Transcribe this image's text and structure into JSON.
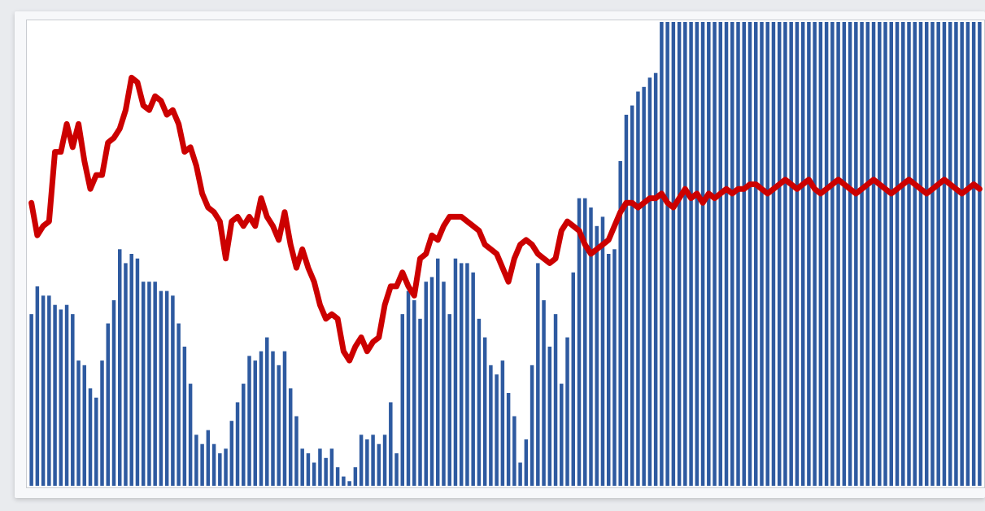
{
  "chart_data": {
    "type": "bar",
    "title": "",
    "xlabel": "",
    "ylabel": "",
    "grid": false,
    "legend": "none",
    "ylim": [
      0,
      100
    ],
    "bar_color": "#2e5aa0",
    "line_color": "#cc0000",
    "x": [
      1,
      2,
      3,
      4,
      5,
      6,
      7,
      8,
      9,
      10,
      11,
      12,
      13,
      14,
      15,
      16,
      17,
      18,
      19,
      20,
      21,
      22,
      23,
      24,
      25,
      26,
      27,
      28,
      29,
      30,
      31,
      32,
      33,
      34,
      35,
      36,
      37,
      38,
      39,
      40,
      41,
      42,
      43,
      44,
      45,
      46,
      47,
      48,
      49,
      50,
      51,
      52,
      53,
      54,
      55,
      56,
      57,
      58,
      59,
      60,
      61,
      62,
      63,
      64,
      65,
      66,
      67,
      68,
      69,
      70,
      71,
      72,
      73,
      74,
      75,
      76,
      77,
      78,
      79,
      80,
      81,
      82,
      83,
      84,
      85,
      86,
      87,
      88,
      89,
      90,
      91,
      92,
      93,
      94,
      95,
      96,
      97,
      98,
      99,
      100,
      101,
      102,
      103,
      104,
      105,
      106,
      107,
      108,
      109,
      110,
      111,
      112,
      113,
      114,
      115,
      116,
      117,
      118,
      119,
      120,
      121,
      122,
      123,
      124,
      125,
      126,
      127,
      128,
      129,
      130,
      131,
      132,
      133,
      134,
      135,
      136,
      137,
      138,
      139,
      140,
      141,
      142,
      143,
      144,
      145,
      146,
      147,
      148,
      149,
      150,
      151,
      152,
      153,
      154,
      155,
      156,
      157,
      158,
      159,
      160,
      161,
      162
    ],
    "series": [
      {
        "kind": "bar",
        "values": [
          37,
          43,
          41,
          41,
          39,
          38,
          39,
          37,
          27,
          26,
          21,
          19,
          27,
          35,
          40,
          51,
          48,
          50,
          49,
          44,
          44,
          44,
          42,
          42,
          41,
          35,
          30,
          22,
          11,
          9,
          12,
          9,
          7,
          8,
          14,
          18,
          22,
          28,
          27,
          29,
          32,
          29,
          26,
          29,
          21,
          15,
          8,
          7,
          5,
          8,
          6,
          8,
          4,
          2,
          1,
          4,
          11,
          10,
          11,
          9,
          11,
          18,
          7,
          37,
          42,
          40,
          36,
          44,
          45,
          49,
          44,
          37,
          49,
          48,
          48,
          46,
          36,
          32,
          26,
          24,
          27,
          20,
          15,
          5,
          10,
          26,
          48,
          40,
          30,
          37,
          22,
          32,
          46,
          62,
          62,
          60,
          56,
          58,
          50,
          51,
          70,
          80,
          82,
          85,
          86,
          88,
          89,
          100,
          100,
          100,
          100,
          100,
          100,
          100,
          100,
          100,
          100,
          100,
          100,
          100,
          100,
          100,
          100,
          100,
          100,
          100,
          100,
          100,
          100,
          100,
          100,
          100,
          100,
          100,
          100,
          100,
          100,
          100,
          100,
          100,
          100,
          100,
          100,
          100,
          100,
          100,
          100,
          100,
          100,
          100,
          100,
          100,
          100,
          100,
          100,
          100,
          100,
          100,
          100,
          100,
          100,
          100
        ]
      },
      {
        "kind": "line",
        "values": [
          61,
          54,
          56,
          57,
          72,
          72,
          78,
          73,
          78,
          70,
          64,
          67,
          67,
          74,
          75,
          77,
          81,
          88,
          87,
          82,
          81,
          84,
          83,
          80,
          81,
          78,
          72,
          73,
          69,
          63,
          60,
          59,
          57,
          49,
          57,
          58,
          56,
          58,
          56,
          62,
          58,
          56,
          53,
          59,
          52,
          47,
          51,
          47,
          44,
          39,
          36,
          37,
          36,
          29,
          27,
          30,
          32,
          29,
          31,
          32,
          39,
          43,
          43,
          46,
          43,
          41,
          49,
          50,
          54,
          53,
          56,
          58,
          58,
          58,
          57,
          56,
          55,
          52,
          51,
          50,
          47,
          44,
          49,
          52,
          53,
          52,
          50,
          49,
          48,
          49,
          55,
          57,
          56,
          55,
          52,
          50,
          51,
          52,
          53,
          56,
          59,
          61,
          61,
          60,
          61,
          62,
          62,
          63,
          61,
          60,
          62,
          64,
          62,
          63,
          61,
          63,
          62,
          63,
          64,
          63,
          64,
          64,
          65,
          65,
          64,
          63,
          64,
          65,
          66,
          65,
          64,
          65,
          66,
          64,
          63,
          64,
          65,
          66,
          65,
          64,
          63,
          64,
          65,
          66,
          65,
          64,
          63,
          64,
          65,
          66,
          65,
          64,
          63,
          64,
          65,
          66,
          65,
          64,
          63,
          64,
          65,
          64
        ]
      }
    ]
  }
}
